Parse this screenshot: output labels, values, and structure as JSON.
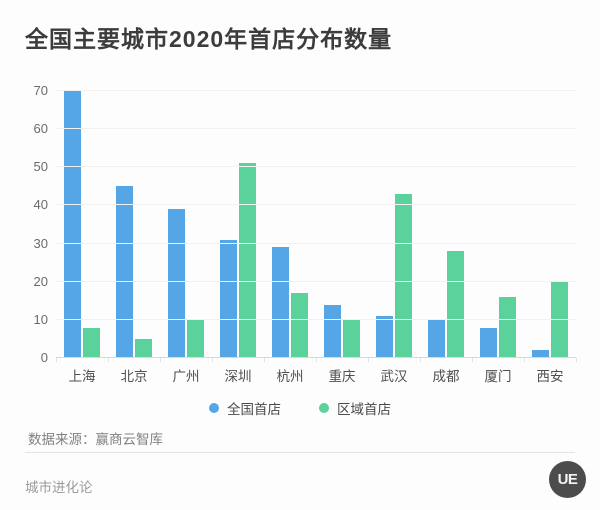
{
  "page": {
    "title": "全国主要城市2020年首店分布数量",
    "source_note": "数据来源：赢商云智库",
    "footer_brand": "城市进化论",
    "logo_text": "UE"
  },
  "colors": {
    "national_blue": "#55a6e6",
    "regional_green": "#5bd19b",
    "title_text": "#3c3c3c",
    "axis_text": "#6b6b6b",
    "gridline": "#f1f1f1"
  },
  "chart_data": {
    "type": "bar",
    "title": "全国主要城市2020年首店分布数量",
    "categories": [
      "上海",
      "北京",
      "广州",
      "深圳",
      "杭州",
      "重庆",
      "武汉",
      "成都",
      "厦门",
      "西安"
    ],
    "series": [
      {
        "name": "全国首店",
        "color": "#55a6e6",
        "values": [
          70,
          45,
          39,
          31,
          29,
          14,
          11,
          10,
          8,
          2
        ]
      },
      {
        "name": "区域首店",
        "color": "#5bd19b",
        "values": [
          8,
          5,
          10,
          51,
          17,
          10,
          43,
          28,
          16,
          20
        ]
      }
    ],
    "xlabel": "",
    "ylabel": "",
    "ylim": [
      0,
      70
    ],
    "yticks": [
      0,
      10,
      20,
      30,
      40,
      50,
      60,
      70
    ],
    "grid": true,
    "legend_position": "bottom"
  }
}
